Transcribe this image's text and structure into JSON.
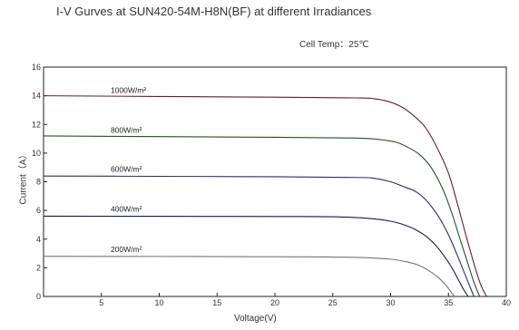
{
  "chart_data": {
    "type": "line",
    "title": "I-V Gurves at SUN420-54M-H8N(BF) at different Irradiances",
    "subtitle": "Cell Temp：25℃",
    "xlabel": "Voltage(V)",
    "ylabel": "Current（A）",
    "xlim": [
      0,
      40
    ],
    "ylim": [
      0,
      16
    ],
    "xticks": [
      5,
      10,
      15,
      20,
      25,
      30,
      35,
      40
    ],
    "yticks": [
      0,
      2,
      4,
      6,
      8,
      10,
      12,
      14,
      16
    ],
    "grid": false,
    "series": [
      {
        "name": "1000W/m²",
        "color": "#6e1a24",
        "label_at": [
          5.8,
          14.2
        ],
        "x": [
          0,
          10,
          20,
          27,
          28.5,
          29.8,
          31,
          32,
          33,
          34,
          35,
          35.8,
          36.5,
          37.2,
          37.8,
          38.3
        ],
        "y": [
          14.0,
          13.95,
          13.9,
          13.85,
          13.8,
          13.6,
          13.2,
          12.6,
          11.8,
          10.4,
          8.6,
          6.4,
          4.3,
          2.3,
          0.8,
          0
        ]
      },
      {
        "name": "800W/m²",
        "color": "#25512a",
        "label_at": [
          5.8,
          11.4
        ],
        "x": [
          0,
          10,
          20,
          27,
          29,
          30.5,
          31.5,
          32.5,
          33.5,
          34.5,
          35.3,
          36,
          36.6,
          37.2,
          37.7
        ],
        "y": [
          11.2,
          11.15,
          11.1,
          11.05,
          10.95,
          10.75,
          10.4,
          9.9,
          9.0,
          7.5,
          5.8,
          4.0,
          2.5,
          1.0,
          0
        ]
      },
      {
        "name": "600W/m²",
        "color": "#2b2d6b",
        "label_at": [
          5.8,
          8.7
        ],
        "x": [
          0,
          10,
          20,
          27,
          28.5,
          30,
          31,
          32.2,
          33.2,
          34.2,
          35,
          35.7,
          36.3,
          36.8,
          37.2
        ],
        "y": [
          8.4,
          8.38,
          8.35,
          8.3,
          8.25,
          8.0,
          7.7,
          7.3,
          6.6,
          5.5,
          4.3,
          3.0,
          1.8,
          0.8,
          0
        ]
      },
      {
        "name": "400W/m²",
        "color": "#121a5a",
        "label_at": [
          5.8,
          5.9
        ],
        "x": [
          0,
          10,
          20,
          25,
          28,
          30,
          31.5,
          32.8,
          33.8,
          34.6,
          35.3,
          35.8,
          36.3,
          36.7
        ],
        "y": [
          5.6,
          5.59,
          5.58,
          5.56,
          5.45,
          5.25,
          4.9,
          4.35,
          3.65,
          2.85,
          2.0,
          1.25,
          0.5,
          0
        ]
      },
      {
        "name": "200W/m²",
        "color": "#767676",
        "label_at": [
          5.8,
          3.1
        ],
        "x": [
          0,
          10,
          20,
          25,
          28,
          30,
          31.5,
          32.5,
          33.3,
          34,
          34.6,
          35.1,
          35.5
        ],
        "y": [
          2.8,
          2.79,
          2.77,
          2.75,
          2.7,
          2.6,
          2.4,
          2.15,
          1.8,
          1.4,
          0.95,
          0.45,
          0
        ]
      }
    ]
  }
}
